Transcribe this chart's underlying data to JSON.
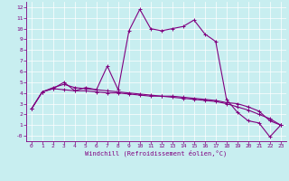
{
  "xlabel": "Windchill (Refroidissement éolien,°C)",
  "bg_color": "#c8eef0",
  "grid_color": "#ffffff",
  "line_color": "#800080",
  "xlim": [
    -0.5,
    23.5
  ],
  "ylim": [
    -0.5,
    12.5
  ],
  "xticks": [
    0,
    1,
    2,
    3,
    4,
    5,
    6,
    7,
    8,
    9,
    10,
    11,
    12,
    13,
    14,
    15,
    16,
    17,
    18,
    19,
    20,
    21,
    22,
    23
  ],
  "yticks": [
    0,
    1,
    2,
    3,
    4,
    5,
    6,
    7,
    8,
    9,
    10,
    11,
    12
  ],
  "ytick_labels": [
    "-0",
    "1",
    "2",
    "3",
    "4",
    "5",
    "6",
    "7",
    "8",
    "9",
    "10",
    "11",
    "12"
  ],
  "series": [
    {
      "x": [
        0,
        1,
        2,
        3,
        4,
        5,
        6,
        7,
        8,
        9,
        10,
        11,
        12,
        13,
        14,
        15,
        16,
        17,
        18,
        19,
        20,
        21,
        22,
        23
      ],
      "y": [
        2.5,
        4.1,
        4.4,
        5.0,
        4.2,
        4.5,
        4.3,
        6.5,
        4.3,
        9.8,
        11.8,
        10.0,
        9.8,
        10.0,
        10.2,
        10.8,
        9.5,
        8.8,
        3.4,
        2.2,
        1.4,
        1.2,
        -0.1,
        1.0
      ]
    },
    {
      "x": [
        0,
        1,
        2,
        3,
        4,
        5,
        6,
        7,
        8,
        9,
        10,
        11,
        12,
        13,
        14,
        15,
        16,
        17,
        18,
        19,
        20,
        21,
        22,
        23
      ],
      "y": [
        2.5,
        4.1,
        4.5,
        4.8,
        4.5,
        4.4,
        4.3,
        4.2,
        4.1,
        4.0,
        3.9,
        3.8,
        3.7,
        3.7,
        3.6,
        3.5,
        3.4,
        3.3,
        3.1,
        3.0,
        2.7,
        2.3,
        1.4,
        1.0
      ]
    },
    {
      "x": [
        0,
        1,
        2,
        3,
        4,
        5,
        6,
        7,
        8,
        9,
        10,
        11,
        12,
        13,
        14,
        15,
        16,
        17,
        18,
        19,
        20,
        21,
        22,
        23
      ],
      "y": [
        2.5,
        4.1,
        4.4,
        4.3,
        4.2,
        4.2,
        4.1,
        4.0,
        4.0,
        3.9,
        3.8,
        3.7,
        3.7,
        3.6,
        3.5,
        3.4,
        3.3,
        3.2,
        3.0,
        2.7,
        2.4,
        2.0,
        1.6,
        1.0
      ]
    }
  ]
}
